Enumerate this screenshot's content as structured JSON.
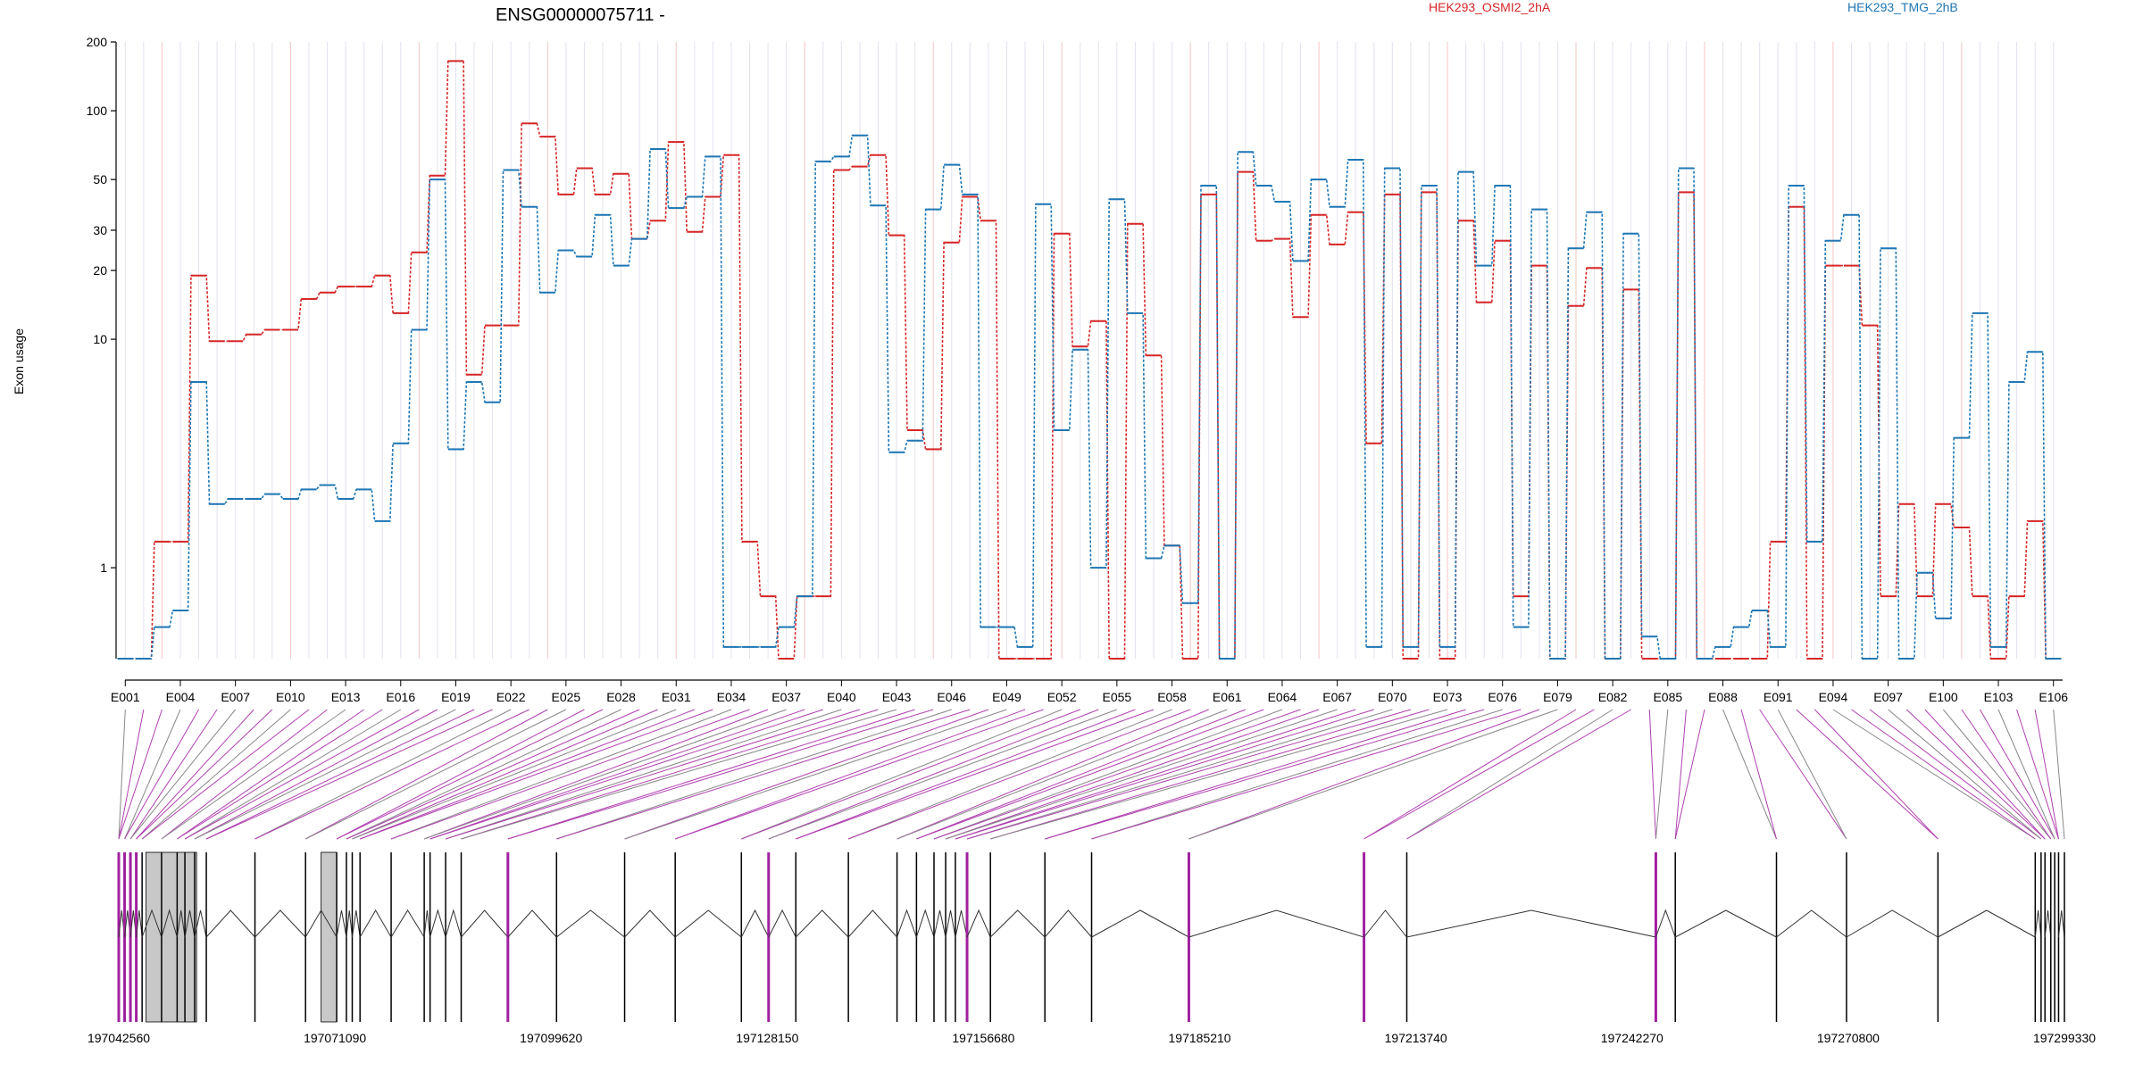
{
  "chart_data": {
    "type": "line",
    "title": "ENSG00000075711 -",
    "ylabel": "Exon usage",
    "xlabel": "",
    "y_scale": "log",
    "ylim": [
      0.4,
      200
    ],
    "y_ticks": [
      1,
      10,
      20,
      30,
      50,
      100,
      200
    ],
    "grid": "vertical lines per exon",
    "legend_placement": "top-right",
    "colors": {
      "HEK293_OSMI2_2hA": "#d62728",
      "HEK293_TMG_2hB": "#1f77b4",
      "exon_highlight": "#a020a0",
      "connector": "#888888"
    },
    "exon_labels": [
      "E001",
      "E004",
      "E007",
      "E010",
      "E013",
      "E016",
      "E019",
      "E022",
      "E025",
      "E028",
      "E031",
      "E034",
      "E037",
      "E040",
      "E043",
      "E046",
      "E049",
      "E052",
      "E055",
      "E058",
      "E061",
      "E064",
      "E067",
      "E070",
      "E073",
      "E076",
      "E079",
      "E082",
      "E085",
      "E088",
      "E091",
      "E094",
      "E097",
      "E100",
      "E103",
      "E106"
    ],
    "series": [
      {
        "name": "HEK293_OSMI2_2hA",
        "values": [
          0.4,
          0.4,
          1.3,
          1.3,
          19,
          9.8,
          9.8,
          10.5,
          11,
          11,
          15,
          16,
          17,
          17,
          19,
          13,
          24,
          52,
          165,
          7,
          11.5,
          11.5,
          88,
          77,
          43,
          56,
          43,
          53,
          27.5,
          33,
          73,
          29.5,
          42,
          64,
          1.3,
          0.75,
          0.4,
          0.75,
          0.75,
          55,
          57,
          64,
          28.5,
          4,
          3.3,
          26.5,
          42,
          33,
          0.4,
          0.4,
          0.4,
          29,
          9.3,
          12,
          0.4,
          32,
          8.5,
          1.25,
          0.4,
          43,
          0.4,
          54,
          27,
          27.5,
          12.5,
          35,
          26,
          36,
          3.5,
          43,
          0.4,
          44,
          0.4,
          33,
          14.5,
          27,
          0.75,
          21,
          0.4,
          14,
          20.5,
          0.4,
          16.5,
          0.4,
          0.4,
          44,
          0.4,
          0.4,
          0.4,
          0.4,
          1.3,
          38,
          0.4,
          21,
          21,
          11.5,
          0.75,
          1.9,
          0.75,
          1.9,
          1.5,
          0.75,
          0.4,
          0.75,
          1.6,
          0.4
        ]
      },
      {
        "name": "HEK293_TMG_2hB",
        "values": [
          0.4,
          0.4,
          0.55,
          0.65,
          6.5,
          1.9,
          2,
          2,
          2.1,
          2,
          2.2,
          2.3,
          2,
          2.2,
          1.6,
          3.5,
          11,
          50,
          3.3,
          6.5,
          5.3,
          55,
          38,
          16,
          24.5,
          23,
          35,
          21,
          27.5,
          68,
          37.5,
          42,
          63,
          0.45,
          0.45,
          0.45,
          0.55,
          0.75,
          60,
          63,
          78,
          38.5,
          3.2,
          3.6,
          37,
          58,
          43,
          0.55,
          0.55,
          0.45,
          39,
          4,
          9,
          1,
          41,
          13,
          1.1,
          1.25,
          0.7,
          47,
          0.4,
          66,
          47,
          40,
          22,
          50,
          38,
          61,
          0.45,
          56,
          0.45,
          47,
          0.45,
          54,
          21,
          47,
          0.55,
          37,
          0.4,
          25,
          36,
          0.4,
          29,
          0.5,
          0.4,
          56,
          0.4,
          0.45,
          0.55,
          0.65,
          0.45,
          47,
          1.3,
          27,
          35,
          0.4,
          25,
          0.4,
          0.95,
          0.6,
          3.7,
          13,
          0.45,
          6.5,
          8.8,
          0.4
        ]
      }
    ],
    "genomic_axis": {
      "ticks": [
        "197042560",
        "197071090",
        "197099620",
        "197128150",
        "197156680",
        "197185210",
        "197213740",
        "197242270",
        "197270800",
        "197299330"
      ]
    }
  }
}
